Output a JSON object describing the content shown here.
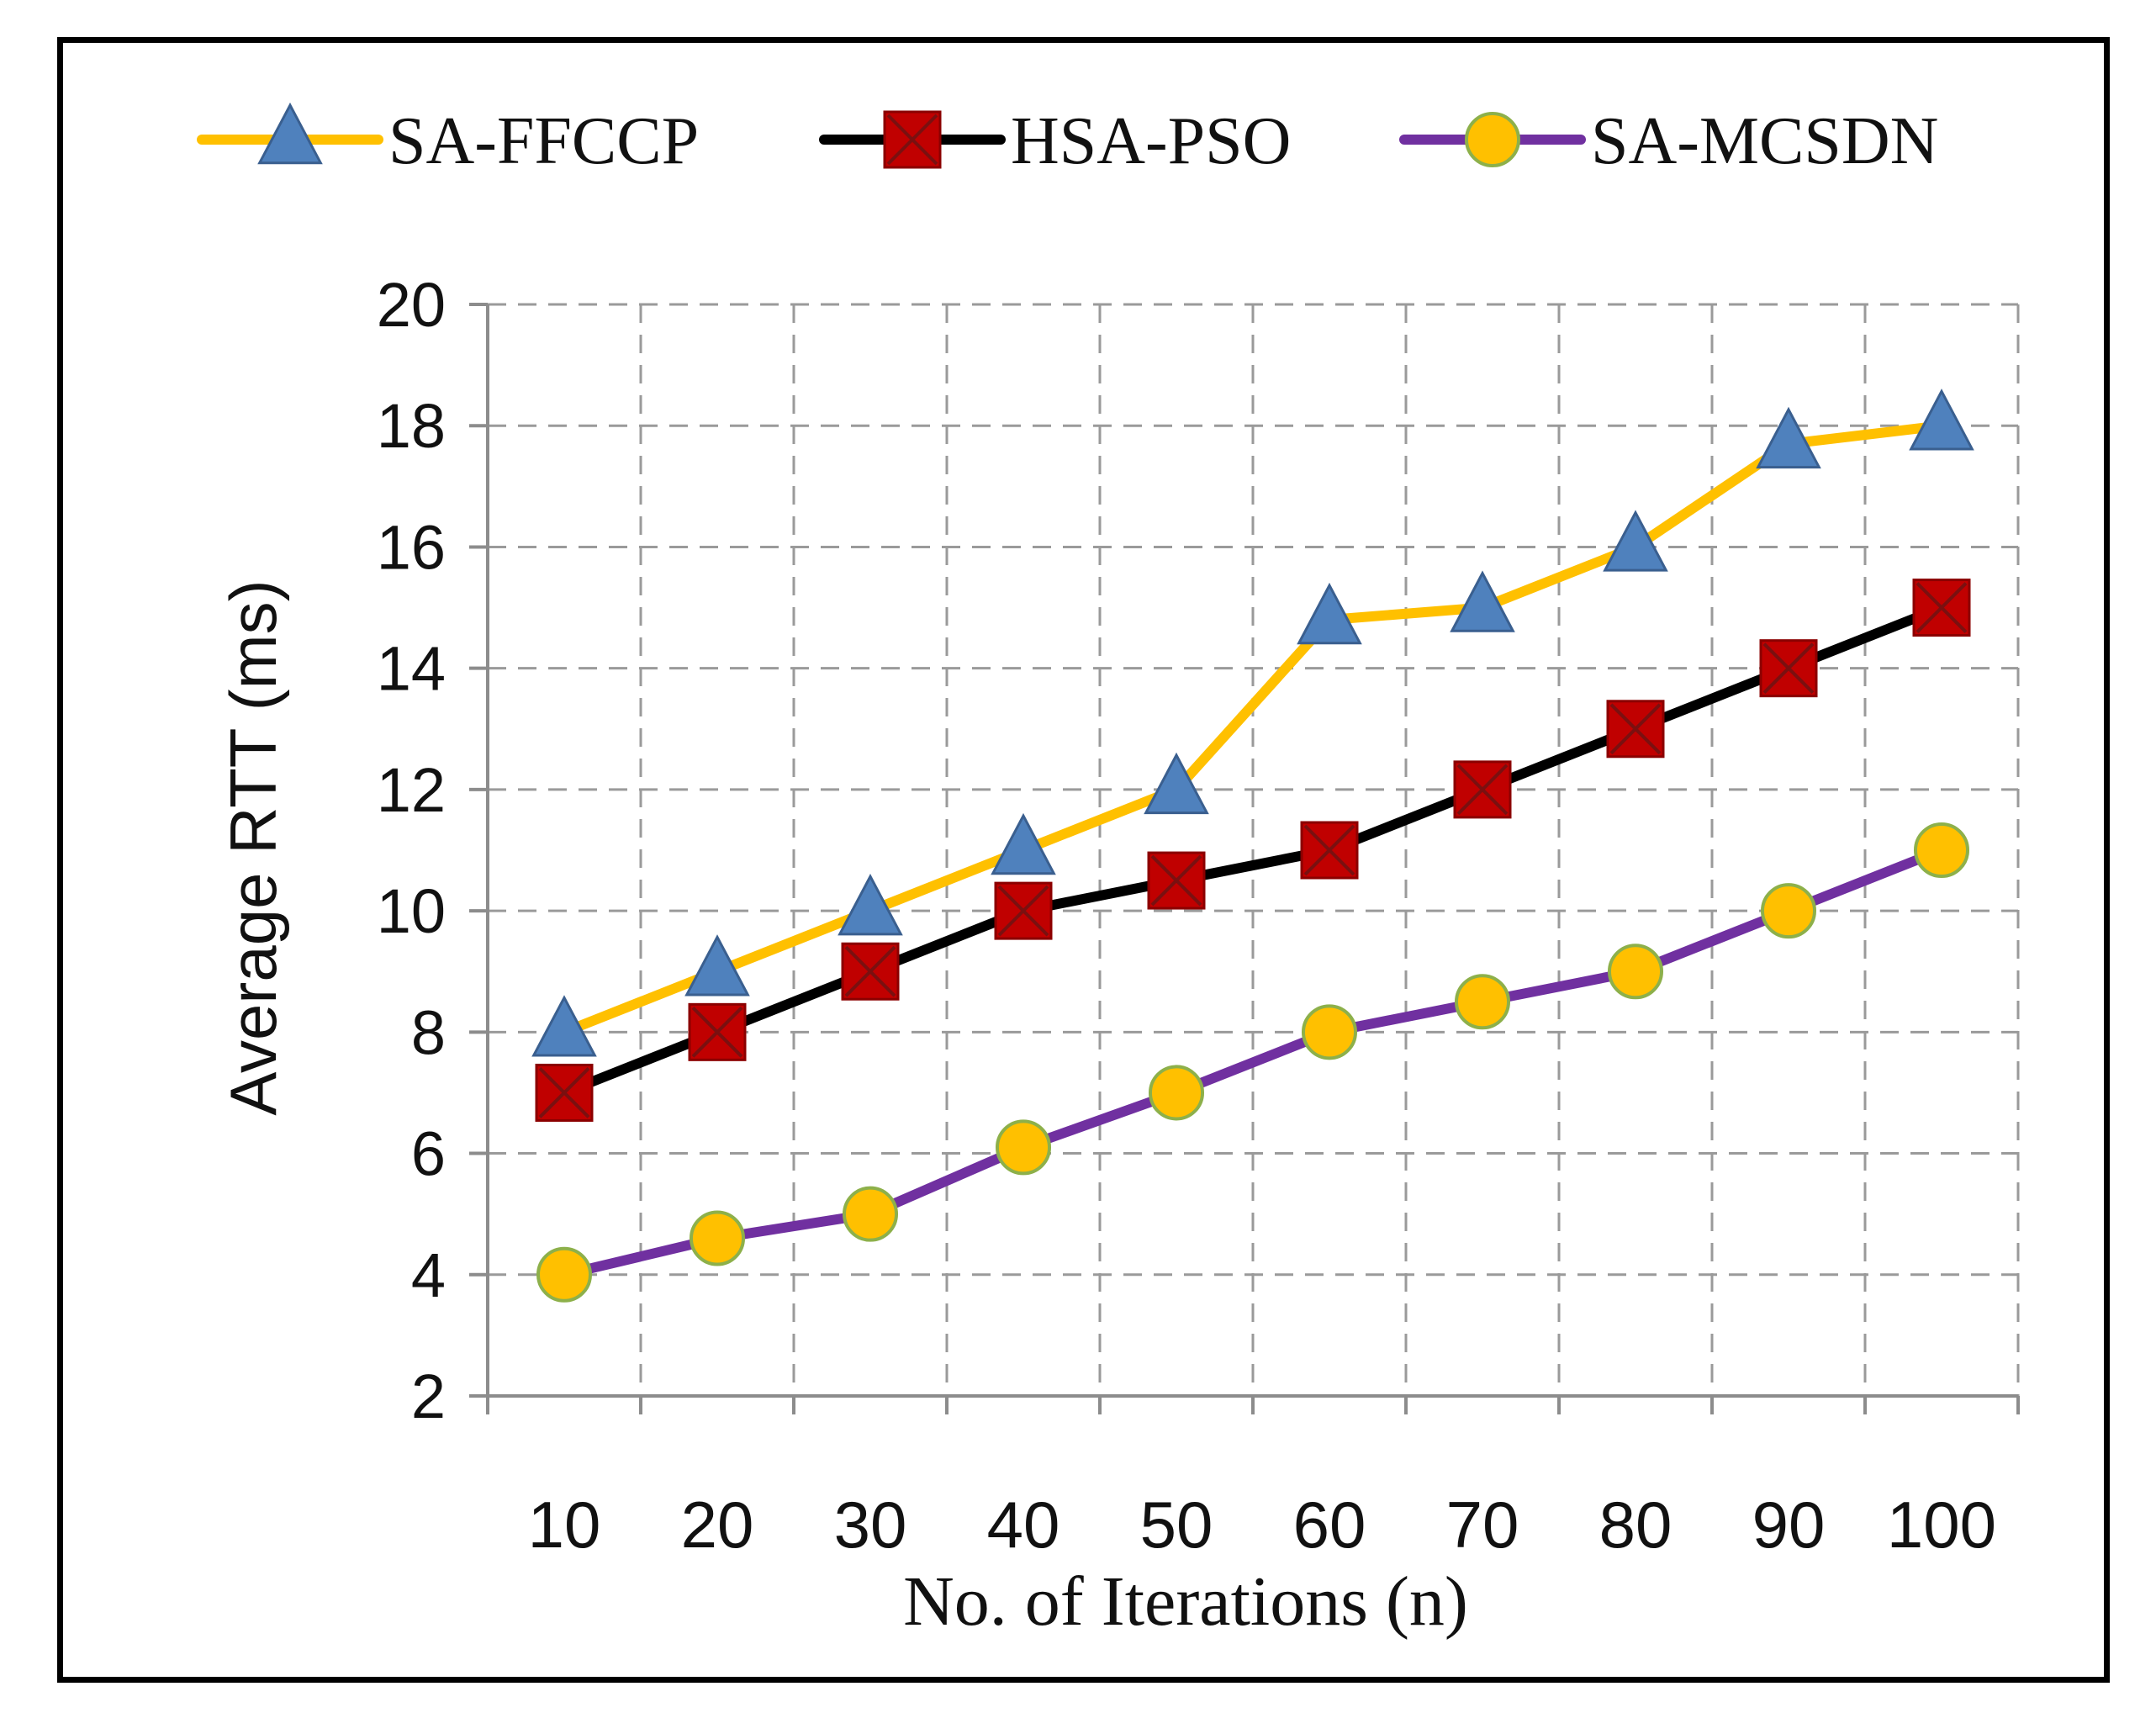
{
  "chart_data": {
    "type": "line",
    "title": "",
    "xlabel": "No. of Iterations (n)",
    "ylabel": "Average RTT (ms)",
    "categories": [
      "10",
      "20",
      "30",
      "40",
      "50",
      "60",
      "70",
      "80",
      "90",
      "100"
    ],
    "ylim": [
      2,
      20
    ],
    "yticks": [
      2,
      4,
      6,
      8,
      10,
      12,
      14,
      16,
      18,
      20
    ],
    "grid": true,
    "legend_position": "top",
    "series": [
      {
        "name": "SA-FFCCP",
        "values": [
          8,
          9,
          10,
          11,
          12,
          14.8,
          15,
          16,
          17.7,
          18
        ],
        "line_color": "#FFC000",
        "marker": "triangle",
        "marker_color": "#4F81BD"
      },
      {
        "name": "HSA-PSO",
        "values": [
          7,
          8,
          9,
          10,
          10.5,
          11,
          12,
          13,
          14,
          15
        ],
        "line_color": "#000000",
        "marker": "square-x",
        "marker_color": "#C00000"
      },
      {
        "name": "SA-MCSDN",
        "values": [
          4,
          4.6,
          5,
          6.1,
          7,
          8,
          8.5,
          9,
          10,
          11
        ],
        "line_color": "#7030A0",
        "marker": "circle",
        "marker_color": "#FFC000"
      }
    ]
  }
}
